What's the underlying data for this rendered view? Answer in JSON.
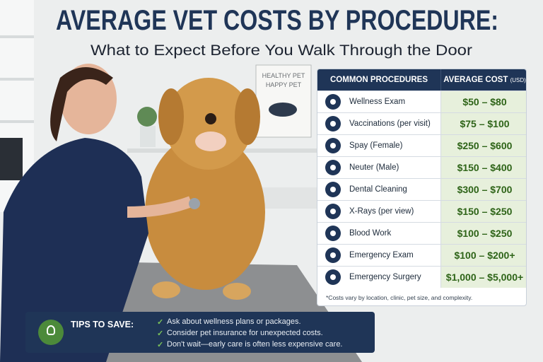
{
  "header": {
    "title": "AVERAGE VET COSTS BY PROCEDURE:",
    "subtitle": "What to Expect Before You Walk Through the Door"
  },
  "poster": {
    "lines": [
      "HEALTHY PET",
      "HAPPY PET"
    ]
  },
  "table": {
    "headers": {
      "procedure": "COMMON PROCEDURES",
      "cost": "AVERAGE COST",
      "unit": "(USD)"
    },
    "rows": [
      [
        "Wellness Exam",
        "$50 – $80"
      ],
      [
        "Vaccinations (per visit)",
        "$75 – $100"
      ],
      [
        "Spay (Female)",
        "$250 – $600"
      ],
      [
        "Neuter (Male)",
        "$150 – $400"
      ],
      [
        "Dental Cleaning",
        "$300 – $700"
      ],
      [
        "X-Rays (per view)",
        "$150 – $250"
      ],
      [
        "Blood Work",
        "$100 – $250"
      ],
      [
        "Emergency Exam",
        "$100 – $200+"
      ],
      [
        "Emergency Surgery",
        "$1,000 – $5,000+"
      ]
    ],
    "footnote": "*Costs vary by location, clinic, pet size, and complexity."
  },
  "tips": {
    "title": "TIPS TO SAVE:",
    "items": [
      "Ask about wellness plans or packages.",
      "Consider pet insurance for unexpected costs.",
      "Don't wait—early care is often less expensive care."
    ]
  }
}
